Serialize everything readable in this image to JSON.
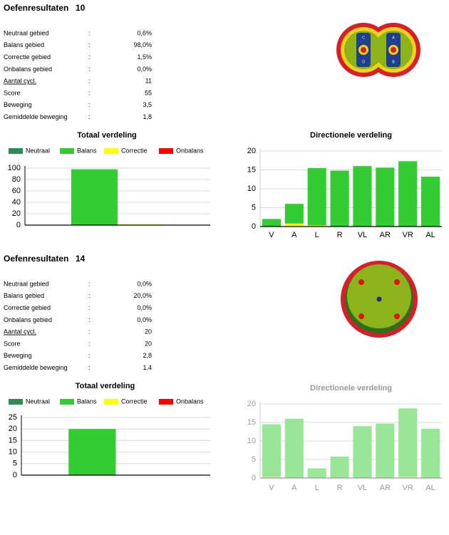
{
  "separator": ":",
  "sections": [
    {
      "title": "Oefenresultaten",
      "number": "10",
      "stats": [
        {
          "label": "Neutraal gebied",
          "value": "0,6%"
        },
        {
          "label": "Balans gebied",
          "value": "98,0%"
        },
        {
          "label": "Correctie gebied",
          "value": "1,5%"
        },
        {
          "label": "Onbalans gebied",
          "value": "0,0%"
        },
        {
          "label": "Aantal cycl.",
          "value": "11"
        },
        {
          "label": "Score",
          "value": "55"
        },
        {
          "label": "Beweging",
          "value": "3,5"
        },
        {
          "label": "Gemiddelde beweging",
          "value": "1,8"
        }
      ],
      "icon_labels": [
        "C",
        "A",
        "D",
        "B"
      ],
      "chart_data": [
        {
          "type": "bar",
          "title": "Totaal verdeling",
          "categories": [
            null
          ],
          "series": [
            {
              "name": "Neutraal",
              "color": "#2e8b57",
              "values": [
                0.6
              ]
            },
            {
              "name": "Balans",
              "color": "#33cc33",
              "values": [
                98
              ]
            },
            {
              "name": "Correctie",
              "color": "#ffff00",
              "values": [
                1.5
              ]
            },
            {
              "name": "Onbalans",
              "color": "#ff0000",
              "values": [
                0
              ]
            }
          ],
          "ylim": [
            0,
            100
          ],
          "yticks": [
            0,
            20,
            40,
            60,
            80,
            100
          ],
          "grid": true,
          "legend": "top-left"
        },
        {
          "type": "stacked_bar",
          "title": "Directionele verdeling",
          "categories": [
            "V",
            "A",
            "L",
            "R",
            "VL",
            "AR",
            "VR",
            "AL"
          ],
          "series": [
            {
              "color": "#ffff00",
              "values": [
                0,
                0.8,
                0.3,
                0,
                0,
                0,
                0,
                0
              ]
            },
            {
              "color": "#33cc33",
              "values": [
                2,
                5.2,
                15.2,
                14.8,
                16,
                15.6,
                17.3,
                13.2
              ]
            }
          ],
          "ylim": [
            0,
            20
          ],
          "yticks": [
            0,
            5,
            10,
            15,
            20
          ],
          "grid": true
        }
      ]
    },
    {
      "title": "Oefenresultaten",
      "number": "14",
      "stats": [
        {
          "label": "Neutraal gebied",
          "value": "0,0%"
        },
        {
          "label": "Balans gebied",
          "value": "20,0%"
        },
        {
          "label": "Correctie gebied",
          "value": "0,0%"
        },
        {
          "label": "Onbalans gebied",
          "value": "0,0%"
        },
        {
          "label": "Aantal cycl.",
          "value": "20"
        },
        {
          "label": "Score",
          "value": "20"
        },
        {
          "label": "Beweging",
          "value": "2,8"
        },
        {
          "label": "Gemiddelde beweging",
          "value": "1,4"
        }
      ],
      "chart_data": [
        {
          "type": "bar",
          "title": "Totaal verdeling",
          "categories": [
            null
          ],
          "series": [
            {
              "name": "Neutraal",
              "color": "#2e8b57",
              "values": [
                0
              ]
            },
            {
              "name": "Balans",
              "color": "#33cc33",
              "values": [
                20
              ]
            },
            {
              "name": "Correctie",
              "color": "#ffff00",
              "values": [
                0
              ]
            },
            {
              "name": "Onbalans",
              "color": "#ff0000",
              "values": [
                0
              ]
            }
          ],
          "ylim": [
            0,
            25
          ],
          "yticks": [
            0,
            5,
            10,
            15,
            20,
            25
          ],
          "grid": true,
          "legend": "top-left"
        },
        {
          "type": "stacked_bar",
          "title": "Directionele verdeling",
          "title_color": "#999999",
          "axis_color": "#999999",
          "categories": [
            "V",
            "A",
            "L",
            "R",
            "VL",
            "AR",
            "VR",
            "AL"
          ],
          "series": [
            {
              "color": "#f0f080",
              "values": [
                0.3,
                0,
                0,
                0,
                0,
                0,
                0.3,
                0
              ]
            },
            {
              "color": "#99e699",
              "values": [
                14.2,
                16,
                2.6,
                5.8,
                14,
                14.7,
                18.5,
                13.3
              ]
            }
          ],
          "ylim": [
            0,
            20
          ],
          "yticks": [
            0,
            5,
            10,
            15,
            20
          ],
          "grid": true
        }
      ]
    }
  ]
}
